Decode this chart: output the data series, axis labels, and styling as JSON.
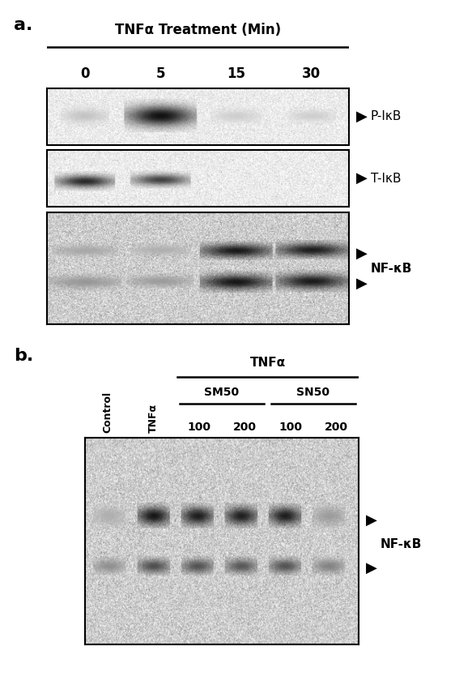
{
  "bg_color": "#ffffff",
  "panel_a": {
    "label": "a.",
    "title": "TNFα Treatment (Min)",
    "time_points": [
      "0",
      "5",
      "15",
      "30"
    ],
    "blot1_label": "P-IκB",
    "blot2_label": "T-IκB",
    "blot3_label": "NF-κB"
  },
  "panel_b": {
    "label": "b.",
    "col_labels_rot": [
      "Control",
      "TNFα",
      "100",
      "200",
      "100",
      "200"
    ],
    "group_label_tnfa": "TNFα",
    "group_label_sm50": "SM50",
    "group_label_sn50": "SN50",
    "nfkb_label": "NF-κB"
  }
}
